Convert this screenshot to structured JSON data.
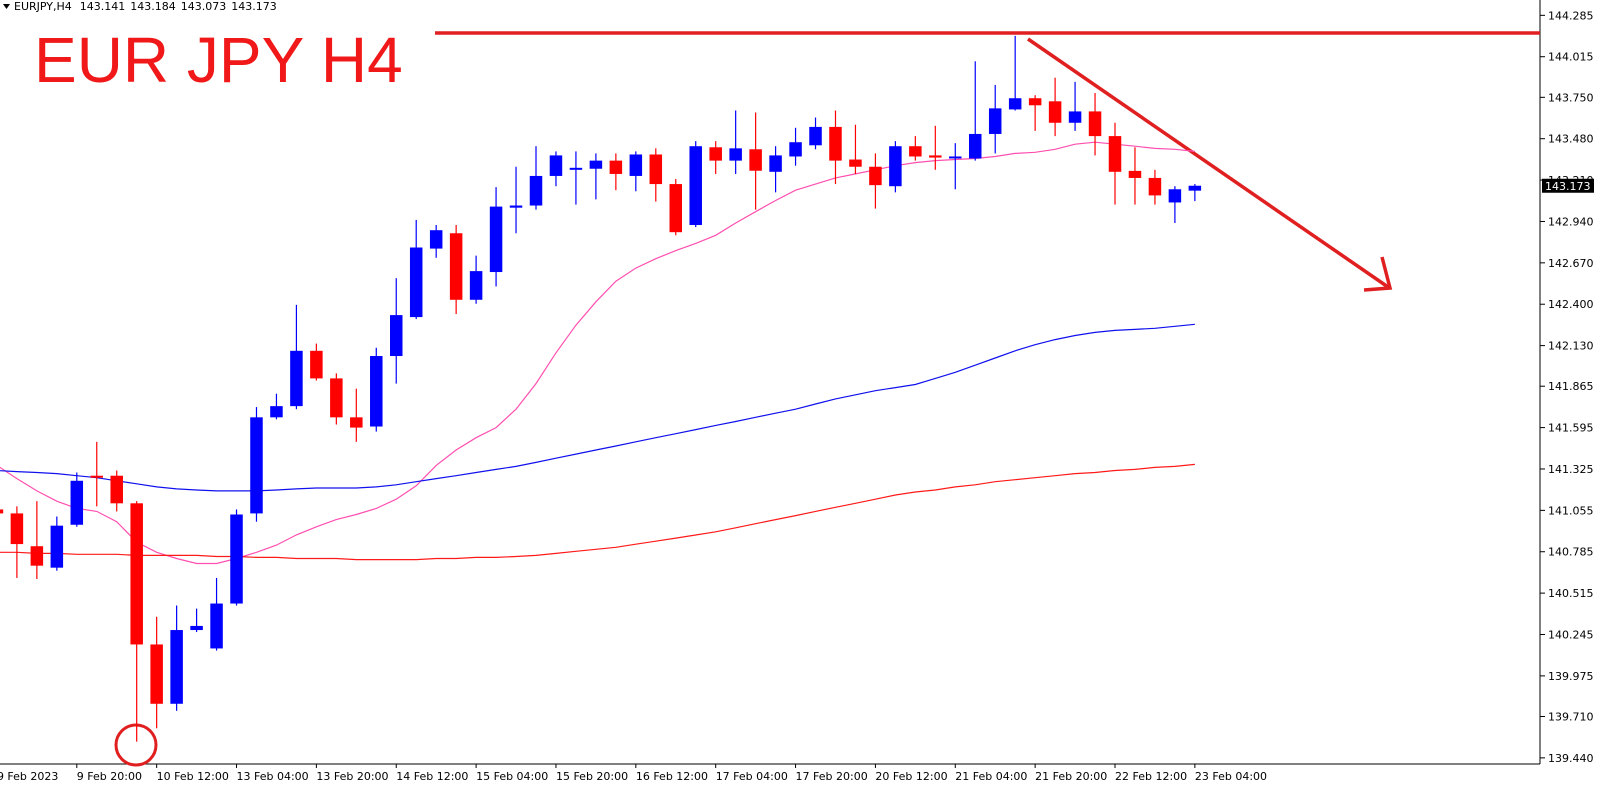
{
  "chart_data": {
    "type": "candlestick",
    "symbol": "EURJPY,H4",
    "annotation": "EUR JPY H4",
    "x": [
      "9 Feb 2023",
      null,
      null,
      null,
      "9 Feb 20:00",
      null,
      null,
      null,
      "10 Feb 12:00",
      null,
      null,
      null,
      "13 Feb 04:00",
      null,
      null,
      null,
      "13 Feb 20:00",
      null,
      null,
      null,
      "14 Feb 12:00",
      null,
      null,
      null,
      "15 Feb 04:00",
      null,
      null,
      null,
      "15 Feb 20:00",
      null,
      null,
      null,
      "16 Feb 12:00",
      null,
      null,
      null,
      "17 Feb 04:00",
      null,
      null,
      null,
      "17 Feb 20:00",
      null,
      null,
      null,
      "20 Feb 12:00",
      null,
      null,
      null,
      "21 Feb 04:00",
      null,
      null,
      null,
      "21 Feb 20:00",
      null,
      null,
      null,
      "22 Feb 12:00",
      null,
      null,
      null,
      "23 Feb 04:00"
    ],
    "open": [
      141.061,
      141.035,
      140.821,
      140.681,
      140.961,
      141.281,
      141.281,
      141.101,
      140.18,
      139.793,
      140.274,
      140.154,
      140.447,
      141.035,
      141.662,
      141.735,
      142.096,
      141.916,
      141.662,
      141.602,
      142.062,
      142.316,
      142.763,
      142.863,
      142.429,
      142.61,
      143.03,
      143.044,
      143.237,
      143.277,
      143.284,
      143.337,
      143.237,
      143.377,
      143.184,
      142.917,
      143.424,
      143.337,
      143.411,
      143.264,
      143.364,
      143.437,
      143.557,
      143.344,
      143.297,
      143.17,
      143.431,
      143.371,
      143.351,
      143.351,
      143.511,
      143.671,
      143.744,
      143.724,
      143.584,
      143.658,
      143.497,
      143.27,
      143.224,
      143.064,
      143.141
    ],
    "high": [
      141.068,
      141.081,
      141.115,
      141.015,
      141.302,
      141.502,
      141.315,
      141.115,
      140.361,
      140.434,
      140.414,
      140.614,
      141.061,
      141.729,
      141.816,
      142.396,
      142.143,
      141.949,
      141.849,
      142.116,
      142.57,
      142.95,
      142.917,
      142.917,
      142.717,
      143.164,
      143.297,
      143.431,
      143.397,
      143.397,
      143.384,
      143.384,
      143.397,
      143.417,
      143.217,
      143.464,
      143.464,
      143.664,
      143.651,
      143.431,
      143.551,
      143.618,
      143.664,
      143.571,
      143.384,
      143.464,
      143.497,
      143.564,
      143.451,
      143.985,
      143.831,
      144.151,
      143.764,
      143.878,
      143.851,
      143.778,
      143.584,
      143.424,
      143.277,
      143.17,
      143.184
    ],
    "low": [
      141.028,
      140.614,
      140.607,
      140.661,
      140.948,
      141.081,
      141.048,
      139.546,
      139.633,
      139.747,
      140.261,
      140.14,
      140.434,
      140.981,
      141.649,
      141.715,
      141.902,
      141.615,
      141.502,
      141.569,
      141.882,
      142.303,
      142.703,
      142.336,
      142.403,
      142.516,
      142.863,
      143.017,
      143.17,
      143.05,
      143.084,
      143.144,
      143.137,
      143.07,
      142.85,
      142.903,
      143.25,
      143.25,
      143.017,
      143.13,
      143.304,
      143.411,
      143.184,
      143.25,
      143.024,
      143.13,
      143.337,
      143.277,
      143.15,
      143.337,
      143.384,
      143.664,
      143.531,
      143.497,
      143.531,
      143.371,
      143.05,
      143.05,
      143.05,
      142.93,
      143.073
    ],
    "close": [
      141.035,
      140.835,
      140.694,
      140.955,
      141.248,
      141.268,
      141.101,
      140.18,
      139.793,
      140.274,
      140.301,
      140.447,
      141.028,
      141.662,
      141.735,
      142.096,
      141.916,
      141.662,
      141.595,
      142.062,
      142.329,
      142.77,
      142.883,
      142.429,
      142.616,
      143.037,
      143.044,
      143.237,
      143.371,
      143.29,
      143.337,
      143.25,
      143.377,
      143.184,
      142.87,
      143.431,
      143.337,
      143.417,
      143.271,
      143.371,
      143.457,
      143.557,
      143.337,
      143.297,
      143.177,
      143.431,
      143.364,
      143.357,
      143.364,
      143.511,
      143.678,
      143.744,
      143.698,
      143.584,
      143.658,
      143.497,
      143.264,
      143.224,
      143.11,
      143.15,
      143.173
    ],
    "up_color": "#0000ff",
    "down_color": "#ff0000",
    "overlays": [
      {
        "color": "#ff4fb0",
        "values": [
          141.348,
          141.262,
          141.182,
          141.115,
          141.068,
          141.048,
          140.981,
          140.848,
          140.781,
          140.741,
          140.708,
          140.708,
          140.741,
          140.781,
          140.828,
          140.895,
          140.948,
          140.995,
          141.028,
          141.068,
          141.128,
          141.215,
          141.348,
          141.449,
          141.529,
          141.595,
          141.715,
          141.882,
          142.083,
          142.263,
          142.416,
          142.55,
          142.636,
          142.697,
          142.75,
          142.797,
          142.85,
          142.93,
          143.004,
          143.077,
          143.144,
          143.184,
          143.224,
          143.25,
          143.277,
          143.304,
          143.324,
          143.337,
          143.344,
          143.351,
          143.364,
          143.384,
          143.391,
          143.411,
          143.444,
          143.457,
          143.444,
          143.431,
          143.417,
          143.411,
          143.397
        ]
      },
      {
        "color": "#1010ee",
        "values": [
          141.315,
          141.308,
          141.302,
          141.295,
          141.281,
          141.268,
          141.248,
          141.228,
          141.208,
          141.195,
          141.188,
          141.182,
          141.182,
          141.182,
          141.188,
          141.195,
          141.201,
          141.201,
          141.201,
          141.208,
          141.222,
          141.242,
          141.262,
          141.281,
          141.302,
          141.322,
          141.342,
          141.368,
          141.395,
          141.422,
          141.449,
          141.475,
          141.502,
          141.529,
          141.555,
          141.582,
          141.609,
          141.635,
          141.662,
          141.689,
          141.715,
          141.749,
          141.782,
          141.809,
          141.836,
          141.856,
          141.876,
          141.916,
          141.956,
          142.002,
          142.049,
          142.096,
          142.136,
          142.169,
          142.196,
          142.216,
          142.229,
          142.236,
          142.243,
          142.256,
          142.269
        ]
      },
      {
        "color": "#ff1a1a",
        "values": [
          140.781,
          140.781,
          140.774,
          140.774,
          140.768,
          140.768,
          140.768,
          140.761,
          140.761,
          140.761,
          140.761,
          140.754,
          140.754,
          140.748,
          140.748,
          140.741,
          140.741,
          140.741,
          140.734,
          140.734,
          140.734,
          140.734,
          140.741,
          140.741,
          140.748,
          140.748,
          140.754,
          140.761,
          140.774,
          140.788,
          140.801,
          140.814,
          140.834,
          140.854,
          140.874,
          140.894,
          140.915,
          140.941,
          140.968,
          140.995,
          141.021,
          141.048,
          141.075,
          141.101,
          141.128,
          141.155,
          141.175,
          141.188,
          141.208,
          141.222,
          141.242,
          141.255,
          141.268,
          141.281,
          141.295,
          141.302,
          141.315,
          141.322,
          141.335,
          141.342,
          141.355
        ]
      }
    ],
    "ylim": [
      139.4,
      144.385
    ],
    "yticks": [
      {
        "value": 139.44,
        "label": "139.440"
      },
      {
        "value": 139.71,
        "label": "139.710"
      },
      139.975,
      140.245,
      140.515,
      140.785,
      141.055,
      141.325,
      141.595,
      141.865,
      {
        "value": 142.13,
        "label": "142.130"
      },
      {
        "value": 142.4,
        "label": "142.400"
      },
      {
        "value": 142.67,
        "label": "142.670"
      },
      {
        "value": 142.94,
        "label": "142.940"
      },
      {
        "value": 143.21,
        "label": "143.210"
      },
      {
        "value": 143.48,
        "label": "143.480"
      },
      {
        "value": 143.75,
        "label": "143.750"
      },
      144.015,
      144.285
    ]
  }
}
